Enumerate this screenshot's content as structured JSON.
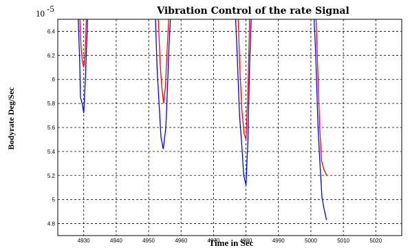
{
  "chart_data": {
    "type": "line",
    "title": "Vibration Control of the rate Signal",
    "xlabel": "Time in Sec",
    "ylabel": "Bodyrate Deg/Sec",
    "y_multiplier": "10",
    "y_exponent": "-5",
    "xlim": [
      4922,
      5028
    ],
    "ylim": [
      4.7,
      6.5
    ],
    "grid": true,
    "x_ticks": [
      4930,
      4940,
      4950,
      4960,
      4970,
      4980,
      4990,
      5000,
      5010,
      5020
    ],
    "y_ticks": [
      4.8,
      5,
      5.2,
      5.4,
      5.6,
      5.8,
      6,
      6.2,
      6.4
    ],
    "y_tick_labels": [
      "4.8",
      "5",
      "5.2",
      "5.4",
      "5.6",
      "5.8",
      "6",
      "6.2",
      "6.4"
    ],
    "series": [
      {
        "color": "#0000ff",
        "segments": [
          [
            [
              4928.3,
              6.5
            ],
            [
              4928.7,
              6.2
            ],
            [
              4929.0,
              5.85
            ],
            [
              4929.5,
              5.8
            ],
            [
              4930.0,
              5.72
            ],
            [
              4930.5,
              6.0
            ],
            [
              4930.9,
              6.3
            ],
            [
              4931.2,
              6.5
            ]
          ],
          [
            [
              4952.1,
              6.5
            ],
            [
              4952.6,
              6.1
            ],
            [
              4953.2,
              5.8
            ],
            [
              4953.8,
              5.52
            ],
            [
              4954.5,
              5.42
            ],
            [
              4955.3,
              5.6
            ],
            [
              4955.9,
              6.0
            ],
            [
              4956.3,
              6.3
            ],
            [
              4956.7,
              6.5
            ]
          ],
          [
            [
              4976.8,
              6.5
            ],
            [
              4977.3,
              6.2
            ],
            [
              4978.0,
              5.7
            ],
            [
              4978.7,
              5.45
            ],
            [
              4979.3,
              5.2
            ],
            [
              4980.0,
              5.12
            ],
            [
              4980.6,
              5.5
            ],
            [
              4981.1,
              6.1
            ],
            [
              4981.6,
              6.5
            ]
          ],
          [
            [
              5001.0,
              6.5
            ],
            [
              5001.5,
              6.2
            ],
            [
              5002.2,
              5.6
            ],
            [
              5002.8,
              5.3
            ],
            [
              5003.4,
              5.02
            ],
            [
              5004.0,
              4.93
            ],
            [
              5004.8,
              4.83
            ]
          ]
        ]
      },
      {
        "color": "#ff0000",
        "segments": [
          [
            [
              4928.8,
              6.5
            ],
            [
              4929.2,
              6.25
            ],
            [
              4929.6,
              6.15
            ],
            [
              4930.0,
              6.1
            ],
            [
              4930.4,
              6.2
            ],
            [
              4930.8,
              6.5
            ]
          ],
          [
            [
              4953.0,
              6.5
            ],
            [
              4953.5,
              6.15
            ],
            [
              4954.0,
              5.95
            ],
            [
              4954.6,
              5.8
            ],
            [
              4955.2,
              5.95
            ],
            [
              4955.8,
              6.3
            ],
            [
              4956.2,
              6.5
            ]
          ],
          [
            [
              4977.6,
              6.5
            ],
            [
              4978.1,
              6.1
            ],
            [
              4978.7,
              5.75
            ],
            [
              4979.4,
              5.55
            ],
            [
              4980.0,
              5.5
            ],
            [
              4980.6,
              5.9
            ],
            [
              4981.1,
              6.5
            ]
          ],
          [
            [
              5001.6,
              6.5
            ],
            [
              5002.1,
              6.1
            ],
            [
              5002.7,
              5.6
            ],
            [
              5003.3,
              5.32
            ],
            [
              5004.0,
              5.25
            ],
            [
              5004.9,
              5.2
            ]
          ]
        ]
      }
    ]
  }
}
